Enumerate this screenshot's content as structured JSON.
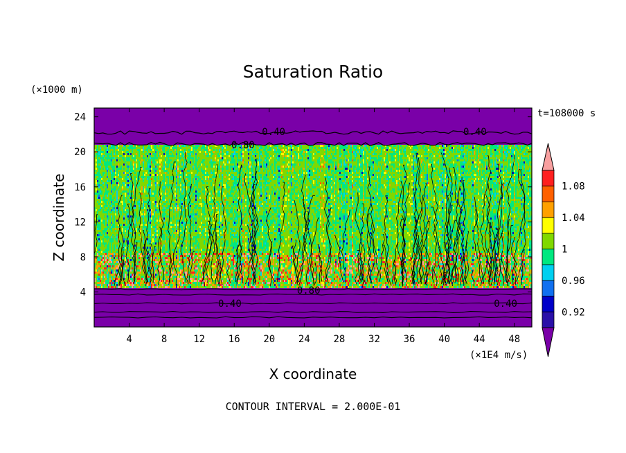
{
  "chart_data": {
    "type": "heatmap",
    "title": "Saturation Ratio",
    "xlabel": "X coordinate",
    "ylabel": "Z coordinate",
    "x_unit": "(×1E4 m/s)",
    "y_unit": "(×1000 m)",
    "time_label": "t=108000 s",
    "footer": "CONTOUR INTERVAL = 2.000E-01",
    "xlim": [
      0,
      50
    ],
    "ylim": [
      0,
      25
    ],
    "x_ticks": [
      "4",
      "8",
      "12",
      "16",
      "20",
      "24",
      "28",
      "32",
      "36",
      "40",
      "44",
      "48"
    ],
    "y_ticks": [
      "4",
      "8",
      "12",
      "16",
      "20",
      "24"
    ],
    "contour_labels": [
      {
        "text": "0.40",
        "x": 20.5,
        "z": 22.3
      },
      {
        "text": "0.40",
        "x": 43.5,
        "z": 22.3
      },
      {
        "text": "0.80",
        "x": 17.0,
        "z": 20.8
      },
      {
        "text": "0.80",
        "x": 24.5,
        "z": 4.2
      },
      {
        "text": "0.40",
        "x": 15.5,
        "z": 2.7
      },
      {
        "text": "0.40",
        "x": 47.0,
        "z": 2.7
      }
    ],
    "colorbar": {
      "labels": [
        "1.08",
        "1.04",
        "1",
        "0.96",
        "0.92"
      ],
      "levels": [
        {
          "color": "#7a00a8"
        },
        {
          "color": "#2a10a8"
        },
        {
          "color": "#0000c8"
        },
        {
          "color": "#1070f0"
        },
        {
          "color": "#00d0f0"
        },
        {
          "color": "#00e880"
        },
        {
          "color": "#80d800"
        },
        {
          "color": "#ffff00"
        },
        {
          "color": "#ffa000"
        },
        {
          "color": "#ff6000"
        },
        {
          "color": "#ff2020"
        },
        {
          "color": "#f8a0a0"
        }
      ]
    }
  }
}
